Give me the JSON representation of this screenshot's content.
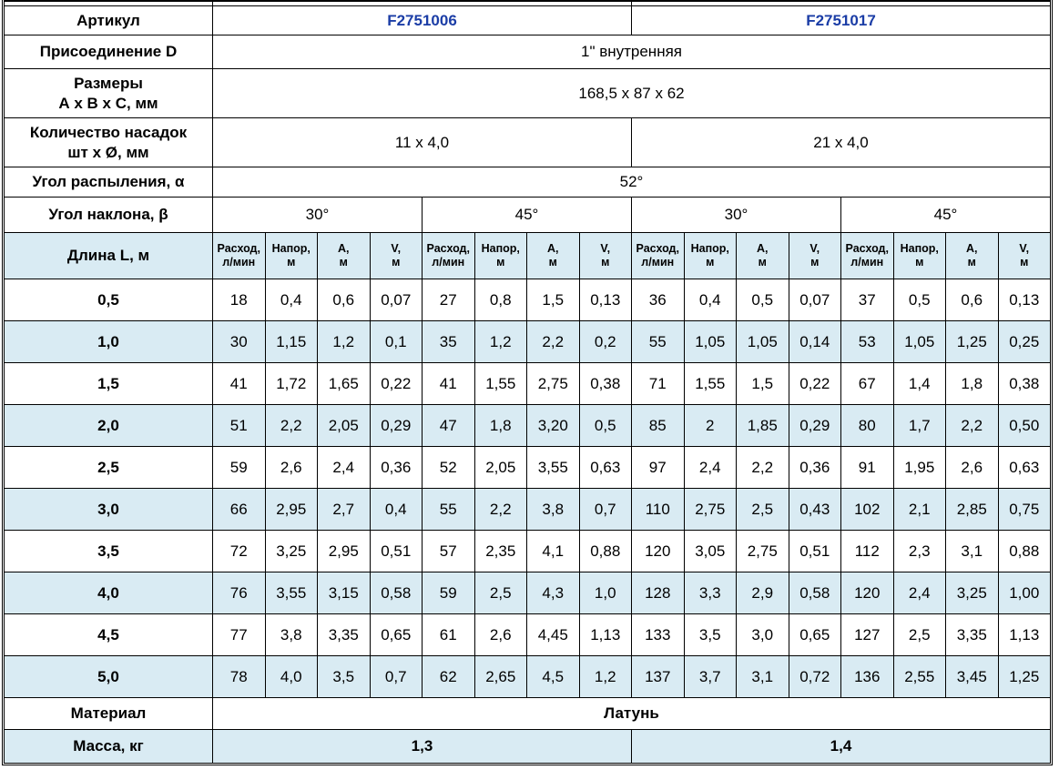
{
  "colors": {
    "article_number": "#1b3da6",
    "row_stripe": "#d9ebf3",
    "grid_line": "#000000"
  },
  "article_row": {
    "label": "Артикул",
    "values": [
      "F2751006",
      "F2751017"
    ]
  },
  "connection_row": {
    "label": "Присоединение D",
    "value": "1\" внутренняя"
  },
  "dimensions_row": {
    "label_line1": "Размеры",
    "label_line2": "А х В х С, мм",
    "value": "168,5 х 87 х 62"
  },
  "nozzles_row": {
    "label_line1": "Количество насадок",
    "label_line2": "шт х Ø, мм",
    "values": [
      "11 х 4,0",
      "21 х 4,0"
    ]
  },
  "spray_angle_row": {
    "label": "Угол распыления, α",
    "value": "52°"
  },
  "tilt_angle_row": {
    "label": "Угол наклона, β",
    "values": [
      "30°",
      "45°",
      "30°",
      "45°"
    ]
  },
  "measurements": {
    "length_label": "Длина L, м",
    "groups": 4,
    "headers": [
      {
        "line1": "Расход,",
        "line2": "л/мин"
      },
      {
        "line1": "Напор,",
        "line2": "м"
      },
      {
        "line1": "А,",
        "line2": "м"
      },
      {
        "line1": "V,",
        "line2": "м"
      }
    ],
    "rows": [
      {
        "length": "0,5",
        "values": [
          "18",
          "0,4",
          "0,6",
          "0,07",
          "27",
          "0,8",
          "1,5",
          "0,13",
          "36",
          "0,4",
          "0,5",
          "0,07",
          "37",
          "0,5",
          "0,6",
          "0,13"
        ]
      },
      {
        "length": "1,0",
        "values": [
          "30",
          "1,15",
          "1,2",
          "0,1",
          "35",
          "1,2",
          "2,2",
          "0,2",
          "55",
          "1,05",
          "1,05",
          "0,14",
          "53",
          "1,05",
          "1,25",
          "0,25"
        ]
      },
      {
        "length": "1,5",
        "values": [
          "41",
          "1,72",
          "1,65",
          "0,22",
          "41",
          "1,55",
          "2,75",
          "0,38",
          "71",
          "1,55",
          "1,5",
          "0,22",
          "67",
          "1,4",
          "1,8",
          "0,38"
        ]
      },
      {
        "length": "2,0",
        "values": [
          "51",
          "2,2",
          "2,05",
          "0,29",
          "47",
          "1,8",
          "3,20",
          "0,5",
          "85",
          "2",
          "1,85",
          "0,29",
          "80",
          "1,7",
          "2,2",
          "0,50"
        ]
      },
      {
        "length": "2,5",
        "values": [
          "59",
          "2,6",
          "2,4",
          "0,36",
          "52",
          "2,05",
          "3,55",
          "0,63",
          "97",
          "2,4",
          "2,2",
          "0,36",
          "91",
          "1,95",
          "2,6",
          "0,63"
        ]
      },
      {
        "length": "3,0",
        "values": [
          "66",
          "2,95",
          "2,7",
          "0,4",
          "55",
          "2,2",
          "3,8",
          "0,7",
          "110",
          "2,75",
          "2,5",
          "0,43",
          "102",
          "2,1",
          "2,85",
          "0,75"
        ]
      },
      {
        "length": "3,5",
        "values": [
          "72",
          "3,25",
          "2,95",
          "0,51",
          "57",
          "2,35",
          "4,1",
          "0,88",
          "120",
          "3,05",
          "2,75",
          "0,51",
          "112",
          "2,3",
          "3,1",
          "0,88"
        ]
      },
      {
        "length": "4,0",
        "values": [
          "76",
          "3,55",
          "3,15",
          "0,58",
          "59",
          "2,5",
          "4,3",
          "1,0",
          "128",
          "3,3",
          "2,9",
          "0,58",
          "120",
          "2,4",
          "3,25",
          "1,00"
        ]
      },
      {
        "length": "4,5",
        "values": [
          "77",
          "3,8",
          "3,35",
          "0,65",
          "61",
          "2,6",
          "4,45",
          "1,13",
          "133",
          "3,5",
          "3,0",
          "0,65",
          "127",
          "2,5",
          "3,35",
          "1,13"
        ]
      },
      {
        "length": "5,0",
        "values": [
          "78",
          "4,0",
          "3,5",
          "0,7",
          "62",
          "2,65",
          "4,5",
          "1,2",
          "137",
          "3,7",
          "3,1",
          "0,72",
          "136",
          "2,55",
          "3,45",
          "1,25"
        ]
      }
    ]
  },
  "material_row": {
    "label": "Материал",
    "value": "Латунь"
  },
  "mass_row": {
    "label": "Масса, кг",
    "values": [
      "1,3",
      "1,4"
    ]
  }
}
